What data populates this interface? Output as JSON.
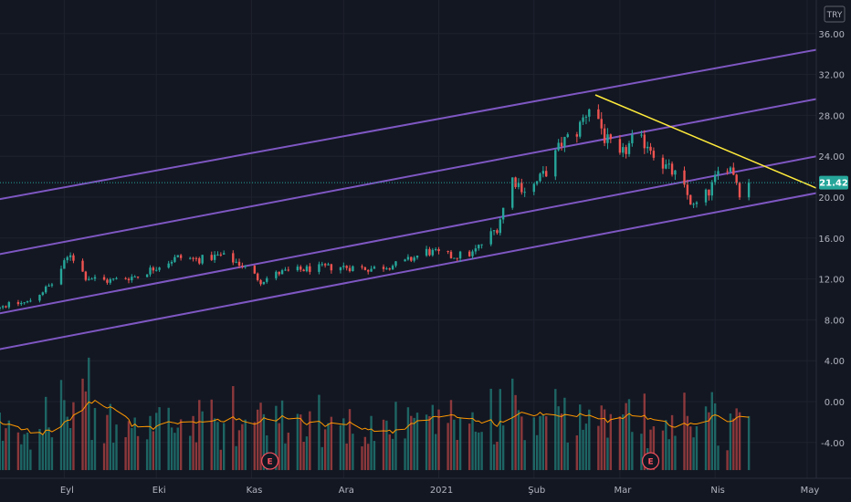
{
  "currency": "TRY",
  "colors": {
    "up": "#26a69a",
    "down": "#ef5350",
    "channel": "#7e57c2",
    "trend": "#ffeb3b",
    "ma": "#ff9800",
    "grid": "#1e222d",
    "bg": "#131722",
    "last": "#26a69a",
    "event": "#f7525f"
  },
  "chart_data": {
    "type": "candlestick",
    "title": "",
    "ylim": [
      -6.5,
      38
    ],
    "yticks": [
      "36.00",
      "32.00",
      "28.00",
      "24.00",
      "20.00",
      "16.00",
      "12.00",
      "8.00",
      "4.00",
      "0.00",
      "-4.00"
    ],
    "ytick_values": [
      36,
      32,
      28,
      24,
      20,
      16,
      12,
      8,
      4,
      0,
      -4
    ],
    "xticks": [
      {
        "label": "Eyl",
        "date": "2020-09-01"
      },
      {
        "label": "Eki",
        "date": "2020-10-01"
      },
      {
        "label": "Kas",
        "date": "2020-11-01"
      },
      {
        "label": "Ara",
        "date": "2020-12-01"
      },
      {
        "label": "2021",
        "date": "2021-01-01"
      },
      {
        "label": "Şub",
        "date": "2021-02-01"
      },
      {
        "label": "Mar",
        "date": "2021-03-01"
      },
      {
        "label": "Nis",
        "date": "2021-04-01"
      },
      {
        "label": "May",
        "date": "2021-05-01"
      }
    ],
    "last_price": "21.42",
    "last_value": 21.42,
    "events": [
      {
        "label": "E",
        "date": "2020-08-07"
      },
      {
        "label": "E",
        "date": "2020-11-07"
      },
      {
        "label": "E",
        "date": "2021-03-11"
      }
    ],
    "price_path": [
      [
        "2020-08-01",
        8.9
      ],
      [
        "2020-08-10",
        9.3
      ],
      [
        "2020-08-20",
        9.7
      ],
      [
        "2020-08-28",
        11.5
      ],
      [
        "2020-09-03",
        14.5
      ],
      [
        "2020-09-08",
        12.2
      ],
      [
        "2020-09-15",
        11.8
      ],
      [
        "2020-09-25",
        12.3
      ],
      [
        "2020-10-01",
        13.2
      ],
      [
        "2020-10-08",
        14.1
      ],
      [
        "2020-10-15",
        13.9
      ],
      [
        "2020-10-22",
        14.3
      ],
      [
        "2020-10-29",
        13.4
      ],
      [
        "2020-11-04",
        11.8
      ],
      [
        "2020-11-10",
        12.6
      ],
      [
        "2020-11-20",
        13.0
      ],
      [
        "2020-11-30",
        13.2
      ],
      [
        "2020-12-10",
        13.0
      ],
      [
        "2020-12-20",
        13.5
      ],
      [
        "2020-12-28",
        14.7
      ],
      [
        "2021-01-05",
        14.2
      ],
      [
        "2021-01-12",
        14.5
      ],
      [
        "2021-01-20",
        17.0
      ],
      [
        "2021-01-25",
        21.8
      ],
      [
        "2021-01-30",
        20.5
      ],
      [
        "2021-02-05",
        22.5
      ],
      [
        "2021-02-10",
        25.3
      ],
      [
        "2021-02-15",
        26.4
      ],
      [
        "2021-02-20",
        29.5
      ],
      [
        "2021-02-24",
        25.8
      ],
      [
        "2021-03-01",
        23.8
      ],
      [
        "2021-03-05",
        25.5
      ],
      [
        "2021-03-10",
        25.3
      ],
      [
        "2021-03-15",
        23.2
      ],
      [
        "2021-03-20",
        21.9
      ],
      [
        "2021-03-25",
        19.0
      ],
      [
        "2021-03-30",
        20.5
      ],
      [
        "2021-04-04",
        23.5
      ],
      [
        "2021-04-07",
        22.5
      ],
      [
        "2021-04-10",
        19.6
      ],
      [
        "2021-04-12",
        21.42
      ]
    ],
    "channel_lines": [
      {
        "start": [
          "2020-07-31",
          19.2
        ],
        "end": [
          "2021-05-11",
          34.8
        ]
      },
      {
        "start": [
          "2020-07-31",
          13.8
        ],
        "end": [
          "2021-05-11",
          30.0
        ]
      },
      {
        "start": [
          "2020-07-31",
          8.0
        ],
        "end": [
          "2021-05-11",
          24.4
        ]
      },
      {
        "start": [
          "2020-07-31",
          4.5
        ],
        "end": [
          "2021-05-11",
          20.8
        ]
      }
    ],
    "trend_line": {
      "start": [
        "2021-02-21",
        30.0
      ],
      "end": [
        "2021-05-11",
        20.0
      ]
    },
    "volume_panel": {
      "baseline": -6.7,
      "max_height_units": 11
    }
  }
}
